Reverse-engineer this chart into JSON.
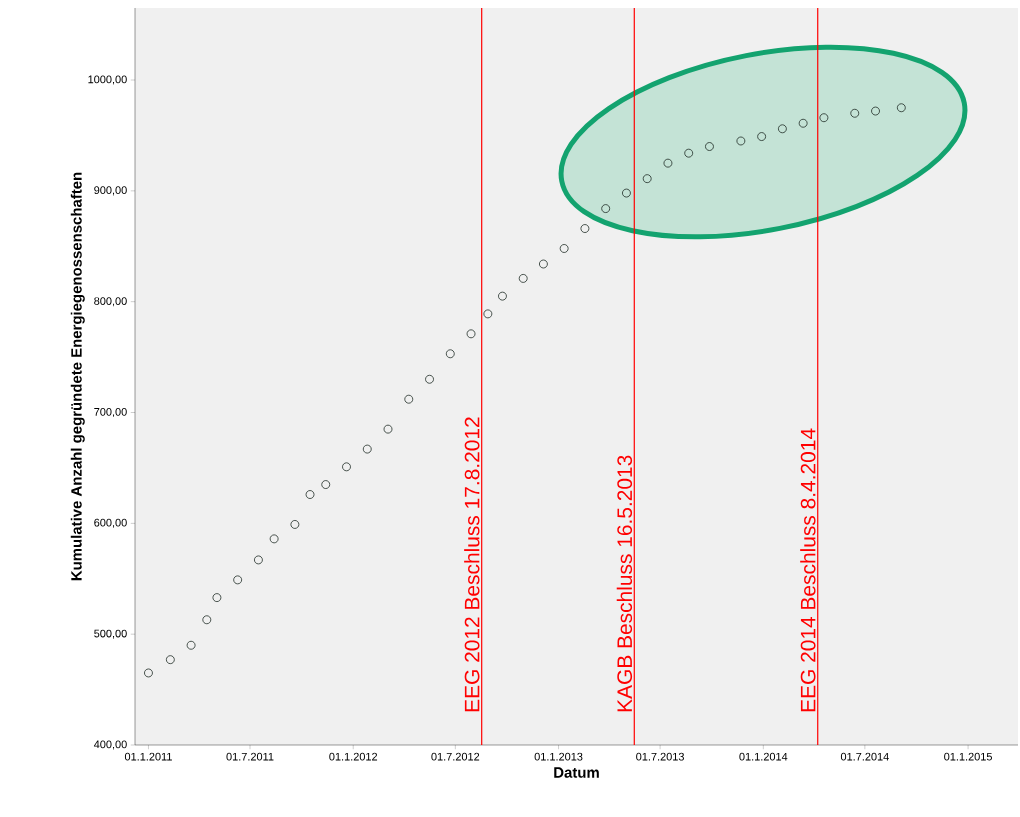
{
  "chart_data": {
    "type": "scatter",
    "xlabel": "Datum",
    "ylabel": "Kumulative Anzahl gegründete Energiegenossenschaften",
    "x": [
      "2011-01-01",
      "2011-02-09",
      "2011-03-18",
      "2011-04-15",
      "2011-05-03",
      "2011-06-09",
      "2011-07-16",
      "2011-08-13",
      "2011-09-19",
      "2011-10-16",
      "2011-11-13",
      "2011-12-20",
      "2012-01-26",
      "2012-03-03",
      "2012-04-09",
      "2012-05-16",
      "2012-06-22",
      "2012-07-29",
      "2012-08-28",
      "2012-09-23",
      "2012-10-30",
      "2012-12-05",
      "2013-01-11",
      "2013-02-17",
      "2013-03-26",
      "2013-05-02",
      "2013-06-08",
      "2013-07-15",
      "2013-08-21",
      "2013-09-27",
      "2013-11-22",
      "2013-12-29",
      "2014-02-04",
      "2014-03-13",
      "2014-04-19",
      "2014-06-13",
      "2014-07-20",
      "2014-09-04"
    ],
    "series": [
      {
        "color": "#1e2b24",
        "values": [
          465,
          477,
          490,
          513,
          533,
          549,
          567,
          586,
          599,
          626,
          635,
          651,
          667,
          685,
          712,
          730,
          753,
          771,
          789,
          805,
          821,
          834,
          848,
          866,
          884,
          898,
          911,
          925,
          934,
          940,
          945,
          949,
          956,
          961,
          966,
          970,
          972,
          975
        ]
      }
    ],
    "marker": "circle",
    "xlim": [
      "2010-12-08",
      "2015-03-31"
    ],
    "ylim": [
      400,
      1065
    ],
    "xticks": [
      {
        "value": "2011-01-01",
        "label": "01.1.2011"
      },
      {
        "value": "2011-07-01",
        "label": "01.7.2011"
      },
      {
        "value": "2012-01-01",
        "label": "01.1.2012"
      },
      {
        "value": "2012-07-01",
        "label": "01.7.2012"
      },
      {
        "value": "2013-01-01",
        "label": "01.1.2013"
      },
      {
        "value": "2013-07-01",
        "label": "01.7.2013"
      },
      {
        "value": "2014-01-01",
        "label": "01.1.2014"
      },
      {
        "value": "2014-07-01",
        "label": "01.7.2014"
      },
      {
        "value": "2015-01-01",
        "label": "01.1.2015"
      }
    ],
    "yticks": [
      {
        "value": 400,
        "label": "400,00"
      },
      {
        "value": 500,
        "label": "500,00"
      },
      {
        "value": 600,
        "label": "600,00"
      },
      {
        "value": 700,
        "label": "700,00"
      },
      {
        "value": 800,
        "label": "800,00"
      },
      {
        "value": 900,
        "label": "900,00"
      },
      {
        "value": 1000,
        "label": "1000,00"
      }
    ],
    "ref_lines": [
      {
        "axis": "x",
        "value": "2012-08-17",
        "label": "EEG 2012 Beschluss 17.8.2012",
        "color": "#ff0000"
      },
      {
        "axis": "x",
        "value": "2013-05-16",
        "label": "KAGB Beschluss 16.5.2013",
        "color": "#ff0000"
      },
      {
        "axis": "x",
        "value": "2014-04-08",
        "label": "EEG 2014 Beschluss 8.4.2014",
        "color": "#ff0000"
      }
    ]
  }
}
